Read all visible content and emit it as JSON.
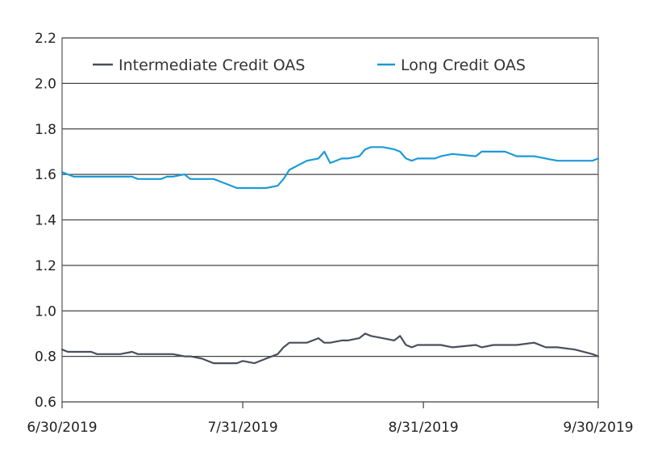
{
  "chart_data": {
    "type": "line",
    "title": "",
    "xlabel": "",
    "ylabel": "",
    "ylim": [
      0.6,
      2.2
    ],
    "yticks": [
      "0.6",
      "0.8",
      "1.0",
      "1.2",
      "1.4",
      "1.6",
      "1.8",
      "2.0",
      "2.2"
    ],
    "xlim": [
      "2019-06-30",
      "2019-09-30"
    ],
    "xticks": [
      "6/30/2019",
      "7/31/2019",
      "8/31/2019",
      "9/30/2019"
    ],
    "grid": "horizontal",
    "legend_position": "top",
    "x_dates": [
      "2019-06-30",
      "2019-07-01",
      "2019-07-02",
      "2019-07-05",
      "2019-07-06",
      "2019-07-09",
      "2019-07-10",
      "2019-07-12",
      "2019-07-13",
      "2019-07-15",
      "2019-07-17",
      "2019-07-18",
      "2019-07-19",
      "2019-07-21",
      "2019-07-22",
      "2019-07-24",
      "2019-07-26",
      "2019-07-28",
      "2019-07-30",
      "2019-07-31",
      "2019-08-02",
      "2019-08-04",
      "2019-08-06",
      "2019-08-07",
      "2019-08-08",
      "2019-08-11",
      "2019-08-13",
      "2019-08-14",
      "2019-08-15",
      "2019-08-17",
      "2019-08-18",
      "2019-08-20",
      "2019-08-21",
      "2019-08-22",
      "2019-08-24",
      "2019-08-26",
      "2019-08-27",
      "2019-08-28",
      "2019-08-29",
      "2019-08-30",
      "2019-09-02",
      "2019-09-03",
      "2019-09-05",
      "2019-09-09",
      "2019-09-10",
      "2019-09-12",
      "2019-09-13",
      "2019-09-14",
      "2019-09-16",
      "2019-09-19",
      "2019-09-21",
      "2019-09-23",
      "2019-09-26",
      "2019-09-29",
      "2019-09-30"
    ],
    "series": [
      {
        "name": "Intermediate Credit OAS",
        "color": "#4a4f5a",
        "values": [
          0.83,
          0.82,
          0.82,
          0.82,
          0.81,
          0.81,
          0.81,
          0.82,
          0.81,
          0.81,
          0.81,
          0.81,
          0.81,
          0.8,
          0.8,
          0.79,
          0.77,
          0.77,
          0.77,
          0.78,
          0.77,
          0.79,
          0.81,
          0.84,
          0.86,
          0.86,
          0.88,
          0.86,
          0.86,
          0.87,
          0.87,
          0.88,
          0.9,
          0.89,
          0.88,
          0.87,
          0.89,
          0.85,
          0.84,
          0.85,
          0.85,
          0.85,
          0.84,
          0.85,
          0.84,
          0.85,
          0.85,
          0.85,
          0.85,
          0.86,
          0.84,
          0.84,
          0.83,
          0.81,
          0.8
        ]
      },
      {
        "name": "Long Credit OAS",
        "color": "#1d9ad6",
        "values": [
          1.61,
          1.6,
          1.59,
          1.59,
          1.59,
          1.59,
          1.59,
          1.59,
          1.58,
          1.58,
          1.58,
          1.59,
          1.59,
          1.6,
          1.58,
          1.58,
          1.58,
          1.56,
          1.54,
          1.54,
          1.54,
          1.54,
          1.55,
          1.58,
          1.62,
          1.66,
          1.67,
          1.7,
          1.65,
          1.67,
          1.67,
          1.68,
          1.71,
          1.72,
          1.72,
          1.71,
          1.7,
          1.67,
          1.66,
          1.67,
          1.67,
          1.68,
          1.69,
          1.68,
          1.7,
          1.7,
          1.7,
          1.7,
          1.68,
          1.68,
          1.67,
          1.66,
          1.66,
          1.66,
          1.67
        ]
      }
    ]
  }
}
